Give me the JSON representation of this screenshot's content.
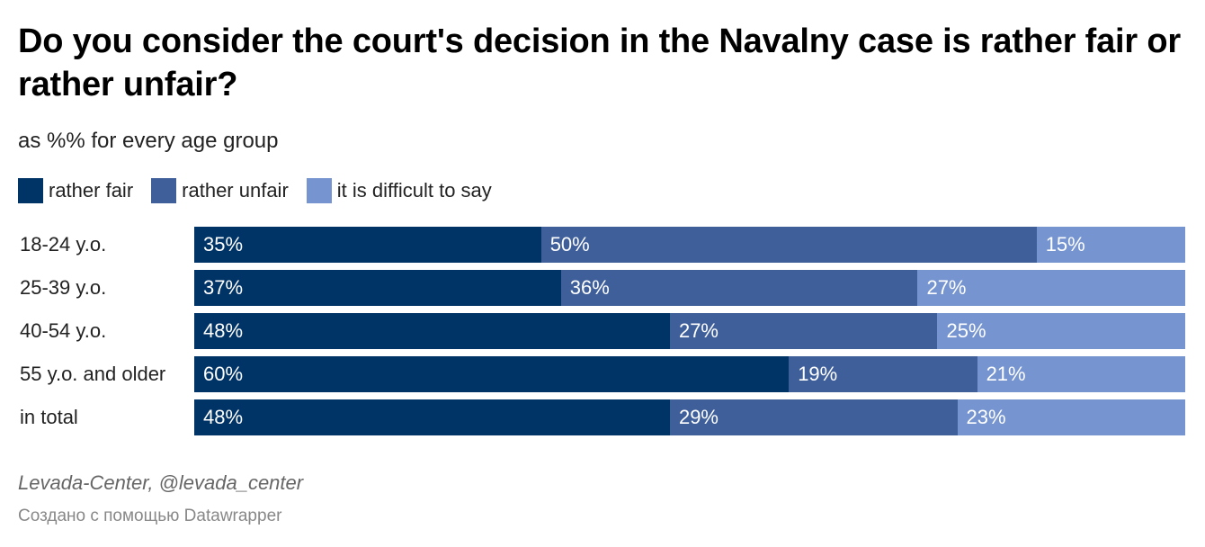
{
  "chart_data": {
    "type": "bar",
    "orientation": "horizontal",
    "stacked": true,
    "title": "Do you consider the court's decision in the Navalny case is rather fair or rather unfair?",
    "subtitle": "as %% for every age group",
    "categories": [
      "18-24 y.o.",
      "25-39 y.o.",
      "40-54 y.o.",
      "55 y.o. and older",
      "in total"
    ],
    "series": [
      {
        "name": "rather fair",
        "color": "#003366",
        "values": [
          35,
          37,
          48,
          60,
          48
        ]
      },
      {
        "name": "rather unfair",
        "color": "#3f5f9b",
        "values": [
          50,
          36,
          27,
          19,
          29
        ]
      },
      {
        "name": "it is difficult to say",
        "color": "#7594d0",
        "values": [
          15,
          27,
          25,
          21,
          23
        ]
      }
    ],
    "value_suffix": "%",
    "xlim": [
      0,
      100
    ],
    "legend_position": "top-left",
    "source": "Levada-Center, @levada_center",
    "credit": "Создано с помощью Datawrapper"
  }
}
